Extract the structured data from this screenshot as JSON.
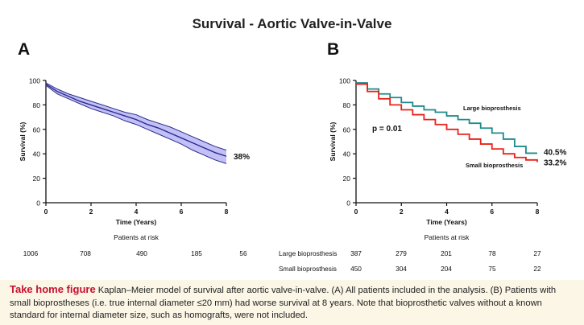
{
  "figure": {
    "title": "Survival - Aortic Valve-in-Valve",
    "panel_a_label": "A",
    "panel_b_label": "B"
  },
  "caption": {
    "lead": "Take home figure",
    "text": "Kaplan–Meier model of survival after aortic valve-in-valve. (A) All patients included in the analysis. (B) Patients with small bioprostheses (i.e. true internal diameter ≤20 mm) had worse survival at 8 years. Note that bioprosthetic valves without a known standard for internal diameter size, such as homografts, were not included."
  },
  "colors": {
    "overall_line": "#2b2a8a",
    "overall_band": "#8f8df0",
    "large": "#1f8a8a",
    "small": "#e8221a"
  },
  "chart_data": [
    {
      "type": "line",
      "panel": "A",
      "xlabel": "Time (Years)",
      "ylabel": "Survival (%)",
      "xlim": [
        0,
        8
      ],
      "ylim": [
        0,
        100
      ],
      "xticks": [
        "0",
        "2",
        "4",
        "6",
        "8"
      ],
      "yticks": [
        "0",
        "20",
        "40",
        "60",
        "80",
        "100"
      ],
      "grid": false,
      "series": [
        {
          "x": [
            0,
            0.5,
            1,
            1.5,
            2,
            2.5,
            3,
            3.5,
            4,
            4.5,
            5,
            5.5,
            6,
            6.5,
            7,
            7.5,
            8
          ],
          "values": [
            97,
            91,
            87,
            83,
            80,
            77,
            74,
            71,
            68,
            64,
            61,
            57,
            53,
            49,
            45,
            41,
            38
          ],
          "ci_lower": [
            96,
            89,
            85,
            81,
            77,
            74,
            71,
            67,
            64,
            60,
            56,
            52,
            48,
            43,
            39,
            35,
            32
          ],
          "ci_upper": [
            98,
            93,
            89,
            86,
            83,
            80,
            77,
            74,
            72,
            68,
            65,
            62,
            58,
            54,
            50,
            46,
            43
          ]
        }
      ],
      "end_label": "38%",
      "risk_table": {
        "title": "Patients at risk",
        "times": [
          0,
          2,
          4,
          6,
          8
        ],
        "rows": [
          {
            "label": "",
            "counts": [
              "1006",
              "708",
              "490",
              "185",
              "56"
            ]
          }
        ]
      }
    },
    {
      "type": "line",
      "panel": "B",
      "xlabel": "Time (Years)",
      "ylabel": "Survival (%)",
      "xlim": [
        0,
        8
      ],
      "ylim": [
        0,
        100
      ],
      "xticks": [
        "0",
        "2",
        "4",
        "6",
        "8"
      ],
      "yticks": [
        "0",
        "20",
        "40",
        "60",
        "80",
        "100"
      ],
      "grid": false,
      "annotation": "p = 0.01",
      "series": [
        {
          "name": "Large bioprosthesis",
          "x": [
            0,
            0.5,
            1,
            1.5,
            2,
            2.5,
            3,
            3.5,
            4,
            4.5,
            5,
            5.5,
            6,
            6.5,
            7,
            7.5,
            8
          ],
          "values": [
            98,
            93,
            89,
            86,
            82,
            79,
            76,
            74,
            71,
            68,
            65,
            61,
            57,
            52,
            46,
            40.5,
            40.5
          ],
          "end_label": "40.5%"
        },
        {
          "name": "Small bioprosthesis",
          "x": [
            0,
            0.5,
            1,
            1.5,
            2,
            2.5,
            3,
            3.5,
            4,
            4.5,
            5,
            5.5,
            6,
            6.5,
            7,
            7.5,
            8
          ],
          "values": [
            97,
            91,
            85,
            80,
            76,
            72,
            68,
            64,
            60,
            56,
            52,
            48,
            44,
            40,
            37,
            35,
            33.2
          ],
          "end_label": "33.2%"
        }
      ],
      "risk_table": {
        "title": "Patients at risk",
        "times": [
          0,
          2,
          4,
          6,
          8
        ],
        "rows": [
          {
            "label": "Large bioprosthesis",
            "counts": [
              "387",
              "279",
              "201",
              "78",
              "27"
            ]
          },
          {
            "label": "Small bioprosthesis",
            "counts": [
              "450",
              "304",
              "204",
              "75",
              "22"
            ]
          }
        ]
      }
    }
  ]
}
